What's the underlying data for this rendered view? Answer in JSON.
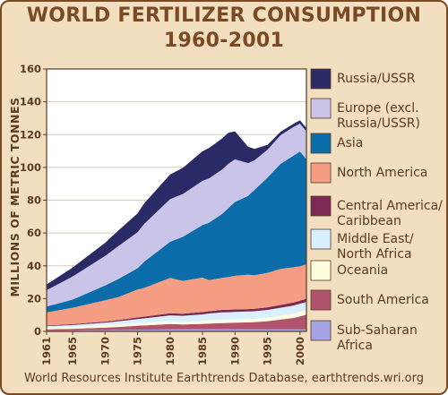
{
  "colors": {
    "brown": "#7a4a24",
    "background": "#f2dfbf",
    "plot_background": "#ffffff"
  },
  "chart_data": {
    "type": "area",
    "title_line1": "WORLD FERTILIZER CONSUMPTION",
    "title_line2": "1960-2001",
    "ylabel": "MILLIONS OF METRIC TONNES",
    "xlabel": "",
    "ylim": [
      0,
      160
    ],
    "yticks": [
      0,
      20,
      40,
      60,
      80,
      100,
      120,
      140,
      160
    ],
    "xlim": [
      1961,
      2001
    ],
    "xticks": [
      1961,
      1965,
      1970,
      1975,
      1980,
      1985,
      1990,
      1995,
      2000
    ],
    "grid": "horizontal",
    "legend_placement": "right",
    "stacked": true,
    "x": [
      1961,
      1965,
      1970,
      1972,
      1975,
      1976,
      1980,
      1982,
      1985,
      1986,
      1988,
      1989,
      1990,
      1992,
      1993,
      1995,
      1997,
      1999,
      2000,
      2001
    ],
    "series": [
      {
        "name": "Sub-Saharan Africa",
        "color": "#a6a2e6",
        "values": [
          0.4,
          0.6,
          0.8,
          0.9,
          1.0,
          1.0,
          1.2,
          1.2,
          1.3,
          1.3,
          1.3,
          1.3,
          1.3,
          1.2,
          1.2,
          1.2,
          1.2,
          1.2,
          1.2,
          1.2
        ]
      },
      {
        "name": "South America",
        "color": "#b0546e",
        "values": [
          0.8,
          1.0,
          1.5,
          1.8,
          2.5,
          2.6,
          3.3,
          3.0,
          3.3,
          3.5,
          3.8,
          3.9,
          4.0,
          4.3,
          4.5,
          5.0,
          6.0,
          7.0,
          8.0,
          9.0
        ]
      },
      {
        "name": "Oceania",
        "color": "#fffde0",
        "values": [
          1.2,
          1.3,
          1.5,
          1.6,
          1.5,
          1.6,
          1.8,
          1.7,
          1.8,
          1.9,
          2.0,
          2.0,
          2.0,
          2.0,
          2.0,
          2.2,
          2.4,
          2.6,
          2.7,
          2.8
        ]
      },
      {
        "name": "Middle East/ North Africa",
        "color": "#d8f0ff",
        "values": [
          0.8,
          1.0,
          1.5,
          1.8,
          2.5,
          2.7,
          3.5,
          3.6,
          4.0,
          4.2,
          4.5,
          4.5,
          4.6,
          4.6,
          4.6,
          4.7,
          4.8,
          5.0,
          5.0,
          5.0
        ]
      },
      {
        "name": "Central America/ Caribbean",
        "color": "#7a2a54",
        "values": [
          0.4,
          0.5,
          0.7,
          0.8,
          1.0,
          1.1,
          1.3,
          1.3,
          1.4,
          1.4,
          1.5,
          1.5,
          1.5,
          1.5,
          1.5,
          1.6,
          1.7,
          1.8,
          1.8,
          1.9
        ]
      },
      {
        "name": "North America",
        "color": "#f59d82",
        "values": [
          8.0,
          10.0,
          13.0,
          14.0,
          17.0,
          17.5,
          21.5,
          20.0,
          21.0,
          19.0,
          19.5,
          20.0,
          20.5,
          21.0,
          20.5,
          21.0,
          22.0,
          21.5,
          21.0,
          21.0
        ]
      },
      {
        "name": "Asia",
        "color": "#0a6ca8",
        "values": [
          3.5,
          5.0,
          9.0,
          11.0,
          13.0,
          16.0,
          22.0,
          27.0,
          32.0,
          35.0,
          39.0,
          42.0,
          45.0,
          48.0,
          52.0,
          58.0,
          64.0,
          68.0,
          70.0,
          64.0
        ]
      },
      {
        "name": "Europe (excl. Russia/USSR)",
        "color": "#c9c4e8",
        "values": [
          10.0,
          14.0,
          18.0,
          20.0,
          22.0,
          23.0,
          26.0,
          26.0,
          27.0,
          27.0,
          27.0,
          27.0,
          26.0,
          20.0,
          18.0,
          17.0,
          17.5,
          17.5,
          17.0,
          17.0
        ]
      },
      {
        "name": "Russia/USSR",
        "color": "#2a2a66",
        "values": [
          3.5,
          5.5,
          8.0,
          9.5,
          11.5,
          12.5,
          15.0,
          16.0,
          18.0,
          18.5,
          19.0,
          19.0,
          17.0,
          10.0,
          7.0,
          3.0,
          2.0,
          2.0,
          2.0,
          2.0
        ]
      }
    ],
    "source": "World Resources Institute Earthtrends Database, earthtrends.wri.org"
  }
}
